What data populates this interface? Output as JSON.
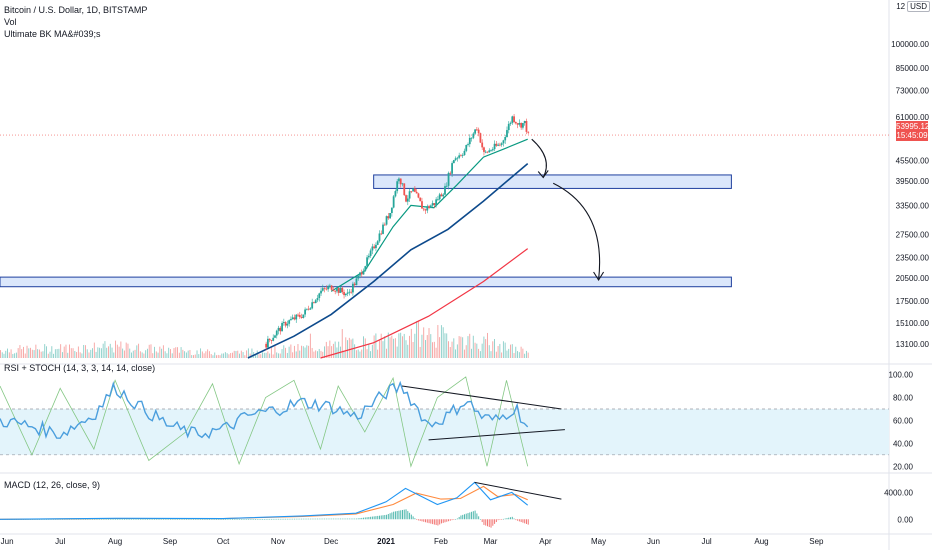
{
  "header": {
    "symbol": "Bitcoin / U.S. Dollar, 1D, BITSTAMP",
    "vol_label": "Vol",
    "ma_label": "Ultimate BK MA&#039;s",
    "currency_prefix": "12",
    "currency": "USD"
  },
  "price_tag": {
    "price": "53995.12",
    "countdown": "15:45:09"
  },
  "colors": {
    "up": "#26a69a",
    "down": "#ef5350",
    "ma_fast": "#089981",
    "ma_mid": "#0d4a8c",
    "ma_slow": "#f23645",
    "zone_fill": "#dbe7fb",
    "zone_stroke": "#1e3f9e",
    "rsi_line": "#4a9edd",
    "rsi_band": "#e3f4fb",
    "stoch": "#84c784",
    "macd_line": "#2196f3",
    "signal_line": "#ff8a3d",
    "price_line": "#ef5350"
  },
  "chart_data": [
    {
      "type": "line",
      "title": "Bitcoin / U.S. Dollar, 1D, BITSTAMP",
      "scale": "log",
      "x_axis_labels": [
        "Jun",
        "Jul",
        "Aug",
        "Sep",
        "Oct",
        "Nov",
        "Dec",
        "2021",
        "Feb",
        "Mar",
        "Apr",
        "May",
        "Jun",
        "Jul",
        "Aug",
        "Sep"
      ],
      "y_ticks": [
        "100000.00",
        "85000.00",
        "73000.00",
        "61000.00",
        "45500.00",
        "39500.00",
        "33500.00",
        "27500.00",
        "23500.00",
        "20500.00",
        "17500.00",
        "15100.00",
        "13100.00"
      ],
      "ylim": [
        11900,
        135000
      ],
      "last_price": 53995.12,
      "close_path": [
        [
          "2020-10-25",
          13100
        ],
        [
          "2020-11-05",
          15100
        ],
        [
          "2020-11-15",
          16000
        ],
        [
          "2020-11-25",
          18700
        ],
        [
          "2020-12-01",
          19300
        ],
        [
          "2020-12-10",
          18300
        ],
        [
          "2020-12-16",
          20500
        ],
        [
          "2020-12-22",
          23500
        ],
        [
          "2020-12-27",
          26800
        ],
        [
          "2021-01-03",
          32000
        ],
        [
          "2021-01-08",
          41000
        ],
        [
          "2021-01-12",
          35000
        ],
        [
          "2021-01-16",
          37000
        ],
        [
          "2021-01-22",
          32500
        ],
        [
          "2021-01-28",
          34000
        ],
        [
          "2021-02-03",
          37500
        ],
        [
          "2021-02-08",
          46000
        ],
        [
          "2021-02-14",
          48500
        ],
        [
          "2021-02-21",
          57000
        ],
        [
          "2021-02-25",
          47500
        ],
        [
          "2021-03-01",
          49000
        ],
        [
          "2021-03-07",
          51000
        ],
        [
          "2021-03-13",
          61000
        ],
        [
          "2021-03-17",
          58000
        ],
        [
          "2021-03-20",
          58500
        ],
        [
          "2021-03-22",
          53995
        ]
      ],
      "series": [
        {
          "name": "MA fast",
          "color": "#089981",
          "points": [
            [
              "2020-12-01",
              18700
            ],
            [
              "2020-12-20",
              21500
            ],
            [
              "2021-01-05",
              29000
            ],
            [
              "2021-01-15",
              33500
            ],
            [
              "2021-01-28",
              33000
            ],
            [
              "2021-02-10",
              38500
            ],
            [
              "2021-02-25",
              46500
            ],
            [
              "2021-03-10",
              49500
            ],
            [
              "2021-03-22",
              52500
            ]
          ]
        },
        {
          "name": "MA mid",
          "color": "#0d4a8c",
          "points": [
            [
              "2020-10-15",
              11900
            ],
            [
              "2020-11-10",
              13800
            ],
            [
              "2020-12-01",
              16000
            ],
            [
              "2020-12-25",
              20000
            ],
            [
              "2021-01-15",
              24800
            ],
            [
              "2021-02-05",
              28500
            ],
            [
              "2021-02-25",
              34500
            ],
            [
              "2021-03-22",
              44500
            ]
          ]
        },
        {
          "name": "MA slow",
          "color": "#f23645",
          "points": [
            [
              "2020-11-25",
              11900
            ],
            [
              "2020-12-25",
              13200
            ],
            [
              "2021-01-25",
              15800
            ],
            [
              "2021-02-25",
              20000
            ],
            [
              "2021-03-22",
              25000
            ]
          ]
        }
      ],
      "zones": [
        {
          "from": 37600,
          "to": 41200,
          "start": "2020-12-25",
          "end": "2021-07-15"
        },
        {
          "from": 19300,
          "to": 20600,
          "start": "2020-05-28",
          "end": "2021-07-15"
        }
      ],
      "projection": [
        [
          "2021-03-22",
          52500
        ],
        [
          "2021-04-02",
          40500
        ],
        [
          "2021-04-02",
          40000
        ],
        [
          "2021-05-01",
          20200
        ]
      ]
    },
    {
      "type": "bar",
      "title": "Vol",
      "volume_profile": [
        [
          "2020-06-01",
          0.25
        ],
        [
          "2020-08-01",
          0.35
        ],
        [
          "2020-10-01",
          0.15
        ],
        [
          "2020-11-15",
          0.3
        ],
        [
          "2021-01-05",
          0.55
        ],
        [
          "2021-01-15",
          0.8
        ],
        [
          "2021-02-15",
          0.55
        ],
        [
          "2021-03-22",
          0.2
        ]
      ]
    },
    {
      "type": "line",
      "title": "RSI + STOCH (14, 3, 3, 14, 14, close)",
      "y_ticks": [
        "100.00",
        "80.00",
        "60.00",
        "40.00",
        "20.00"
      ],
      "ylim": [
        15,
        104
      ],
      "band": [
        30,
        70
      ],
      "rsi": [
        [
          "2020-05-28",
          60
        ],
        [
          "2020-06-15",
          55
        ],
        [
          "2020-07-01",
          48
        ],
        [
          "2020-07-20",
          65
        ],
        [
          "2020-08-01",
          89
        ],
        [
          "2020-08-15",
          72
        ],
        [
          "2020-09-01",
          55
        ],
        [
          "2020-09-15",
          48
        ],
        [
          "2020-10-01",
          52
        ],
        [
          "2020-10-15",
          64
        ],
        [
          "2020-11-01",
          70
        ],
        [
          "2020-11-15",
          76
        ],
        [
          "2020-12-01",
          72
        ],
        [
          "2020-12-15",
          63
        ],
        [
          "2021-01-01",
          84
        ],
        [
          "2021-01-10",
          90
        ],
        [
          "2021-01-25",
          56
        ],
        [
          "2021-02-05",
          64
        ],
        [
          "2021-02-15",
          78
        ],
        [
          "2021-02-25",
          62
        ],
        [
          "2021-03-05",
          60
        ],
        [
          "2021-03-15",
          72
        ],
        [
          "2021-03-22",
          54
        ]
      ],
      "stoch": [
        [
          "2020-05-28",
          90
        ],
        [
          "2020-06-15",
          30
        ],
        [
          "2020-07-01",
          88
        ],
        [
          "2020-07-20",
          35
        ],
        [
          "2020-08-01",
          95
        ],
        [
          "2020-08-20",
          25
        ],
        [
          "2020-09-10",
          50
        ],
        [
          "2020-09-25",
          92
        ],
        [
          "2020-10-10",
          22
        ],
        [
          "2020-10-25",
          80
        ],
        [
          "2020-11-10",
          95
        ],
        [
          "2020-11-25",
          35
        ],
        [
          "2020-12-05",
          90
        ],
        [
          "2020-12-20",
          50
        ],
        [
          "2021-01-05",
          97
        ],
        [
          "2021-01-15",
          20
        ],
        [
          "2021-01-30",
          80
        ],
        [
          "2021-02-15",
          98
        ],
        [
          "2021-02-27",
          20
        ],
        [
          "2021-03-10",
          95
        ],
        [
          "2021-03-22",
          20
        ]
      ],
      "divergence_upper": [
        [
          "2021-01-10",
          90
        ],
        [
          "2021-04-10",
          70
        ]
      ],
      "divergence_lower": [
        [
          "2021-01-25",
          43
        ],
        [
          "2021-04-12",
          52
        ]
      ]
    },
    {
      "type": "line",
      "title": "MACD (12, 26, close, 9)",
      "y_ticks": [
        "4000.00",
        "0.00"
      ],
      "ylim": [
        -1900,
        6300
      ],
      "macd": [
        [
          "2020-05-28",
          0
        ],
        [
          "2020-08-01",
          150
        ],
        [
          "2020-10-01",
          100
        ],
        [
          "2020-11-15",
          500
        ],
        [
          "2020-12-15",
          900
        ],
        [
          "2021-01-01",
          2600
        ],
        [
          "2021-01-12",
          4600
        ],
        [
          "2021-01-30",
          2200
        ],
        [
          "2021-02-10",
          3200
        ],
        [
          "2021-02-20",
          5500
        ],
        [
          "2021-03-01",
          2900
        ],
        [
          "2021-03-13",
          4000
        ],
        [
          "2021-03-22",
          2100
        ]
      ],
      "signal": [
        [
          "2020-05-28",
          0
        ],
        [
          "2020-08-01",
          120
        ],
        [
          "2020-10-01",
          100
        ],
        [
          "2020-11-15",
          420
        ],
        [
          "2020-12-15",
          800
        ],
        [
          "2021-01-05",
          2200
        ],
        [
          "2021-01-18",
          3900
        ],
        [
          "2021-02-01",
          3000
        ],
        [
          "2021-02-12",
          3100
        ],
        [
          "2021-02-25",
          4900
        ],
        [
          "2021-03-05",
          3400
        ],
        [
          "2021-03-15",
          3700
        ],
        [
          "2021-03-22",
          2900
        ]
      ],
      "divergence": [
        [
          "2021-02-20",
          5500
        ],
        [
          "2021-04-10",
          3000
        ]
      ]
    }
  ]
}
